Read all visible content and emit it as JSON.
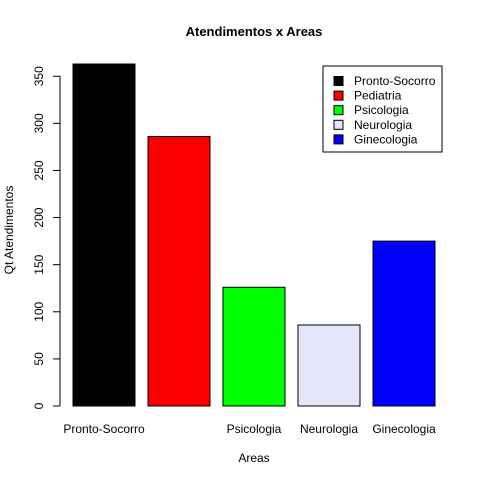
{
  "chart_data": {
    "type": "bar",
    "title": "Atendimentos x Areas",
    "xlabel": "Areas",
    "ylabel": "Qt Atendimentos",
    "categories": [
      "Pronto-Socorro",
      "Pediatria",
      "Psicologia",
      "Neurologia",
      "Ginecologia"
    ],
    "x_tick_labels": [
      "Pronto-Socorro",
      "",
      "Psicologia",
      "Neurologia",
      "Ginecologia"
    ],
    "values": [
      363,
      286,
      126,
      86,
      175
    ],
    "colors": [
      "#000000",
      "#ff0000",
      "#00ff00",
      "#e6e6fa",
      "#0000ff"
    ],
    "ylim": [
      0,
      363
    ],
    "y_ticks": [
      0,
      50,
      100,
      150,
      200,
      250,
      300,
      350
    ],
    "grid": false,
    "legend": {
      "placement": "top-right",
      "entries": [
        {
          "label": "Pronto-Socorro",
          "color": "#000000"
        },
        {
          "label": "Pediatria",
          "color": "#ff0000"
        },
        {
          "label": "Psicologia",
          "color": "#00ff00"
        },
        {
          "label": "Neurologia",
          "color": "#e6e6fa"
        },
        {
          "label": "Ginecologia",
          "color": "#0000ff"
        }
      ]
    }
  }
}
